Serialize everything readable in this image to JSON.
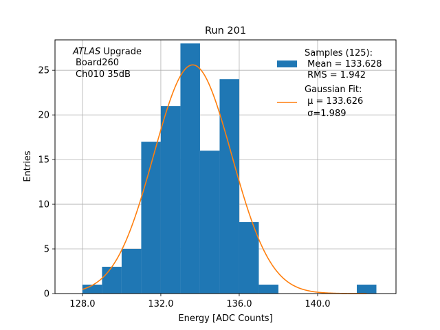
{
  "chart_data": {
    "type": "bar",
    "title": "Run 201",
    "xlabel": "Energy [ADC Counts]",
    "ylabel": "Entries",
    "xlim": [
      126.6,
      144.0
    ],
    "ylim": [
      0,
      28.4
    ],
    "xticks": [
      128.0,
      132.0,
      136.0,
      140.0
    ],
    "xtick_labels": [
      "128.0",
      "132.0",
      "136.0",
      "140.0"
    ],
    "yticks": [
      0,
      5,
      10,
      15,
      20,
      25
    ],
    "ytick_labels": [
      "0",
      "5",
      "10",
      "15",
      "20",
      "25"
    ],
    "grid": true,
    "histogram": {
      "name": "Samples",
      "color": "#1f77b4",
      "bin_edges": [
        128,
        129,
        130,
        131,
        132,
        133,
        134,
        135,
        136,
        137,
        138,
        139,
        140,
        141,
        142,
        143
      ],
      "counts": [
        1,
        3,
        5,
        17,
        21,
        28,
        16,
        24,
        8,
        1,
        0,
        0,
        0,
        0,
        1
      ]
    },
    "fit": {
      "name": "Gaussian Fit",
      "color": "#ff7f0e",
      "mu": 133.626,
      "sigma": 1.989,
      "amplitude": 25.6,
      "x_range": [
        128.0,
        142.5
      ]
    },
    "annotation": {
      "italic": "ATLAS",
      "upright": " Upgrade",
      "line2": "Board260",
      "line3": "Ch010 35dB"
    },
    "legend": {
      "position": "top-right",
      "entries": [
        {
          "lines": [
            "Samples (125):",
            " Mean = 133.628",
            " RMS = 1.942"
          ]
        },
        {
          "lines": [
            "Gaussian Fit:",
            " μ = 133.626",
            " σ=1.989"
          ]
        }
      ]
    }
  }
}
